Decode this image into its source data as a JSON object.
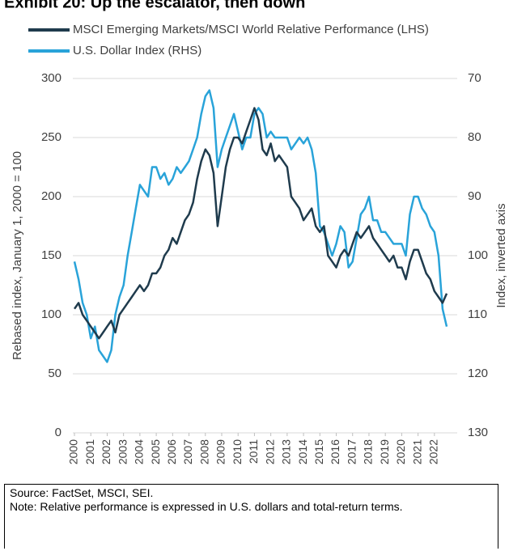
{
  "chart_data": {
    "type": "line",
    "title": "Exhibit 20: Up the escalator, then down",
    "ylabel": "Rebased index, January 1, 2000 = 100",
    "y2label": "Index, inverted axis",
    "xlim": [
      2000,
      2022.75
    ],
    "xticks": [
      2000,
      2001,
      2002,
      2003,
      2004,
      2005,
      2006,
      2007,
      2008,
      2009,
      2010,
      2011,
      2012,
      2013,
      2014,
      2015,
      2016,
      2017,
      2018,
      2019,
      2020,
      2021,
      2022
    ],
    "ylim": [
      0,
      300
    ],
    "yticks": [
      0,
      50,
      100,
      150,
      200,
      250,
      300
    ],
    "y2lim": [
      130,
      70
    ],
    "y2ticks": [
      70,
      80,
      90,
      100,
      110,
      120,
      130
    ],
    "grid": true,
    "x": [
      2000,
      2000.25,
      2000.5,
      2000.75,
      2001,
      2001.25,
      2001.5,
      2001.75,
      2002,
      2002.25,
      2002.5,
      2002.75,
      2003,
      2003.25,
      2003.5,
      2003.75,
      2004,
      2004.25,
      2004.5,
      2004.75,
      2005,
      2005.25,
      2005.5,
      2005.75,
      2006,
      2006.25,
      2006.5,
      2006.75,
      2007,
      2007.25,
      2007.5,
      2007.75,
      2008,
      2008.25,
      2008.5,
      2008.75,
      2009,
      2009.25,
      2009.5,
      2009.75,
      2010,
      2010.25,
      2010.5,
      2010.75,
      2011,
      2011.25,
      2011.5,
      2011.75,
      2012,
      2012.25,
      2012.5,
      2012.75,
      2013,
      2013.25,
      2013.5,
      2013.75,
      2014,
      2014.25,
      2014.5,
      2014.75,
      2015,
      2015.25,
      2015.5,
      2015.75,
      2016,
      2016.25,
      2016.5,
      2016.75,
      2017,
      2017.25,
      2017.5,
      2017.75,
      2018,
      2018.25,
      2018.5,
      2018.75,
      2019,
      2019.25,
      2019.5,
      2019.75,
      2020,
      2020.25,
      2020.5,
      2020.75,
      2021,
      2021.25,
      2021.5,
      2021.75,
      2022,
      2022.25,
      2022.5,
      2022.75
    ],
    "series": [
      {
        "name": "MSCI Emerging Markets/MSCI World Relative Performance (LHS)",
        "color": "#1f3b4d",
        "axis": "y",
        "values": [
          105,
          110,
          100,
          95,
          90,
          85,
          80,
          85,
          90,
          95,
          85,
          100,
          105,
          110,
          115,
          120,
          125,
          120,
          125,
          135,
          135,
          140,
          150,
          155,
          165,
          160,
          170,
          180,
          185,
          195,
          215,
          230,
          240,
          235,
          220,
          175,
          200,
          225,
          240,
          250,
          250,
          245,
          255,
          265,
          275,
          265,
          240,
          235,
          245,
          230,
          235,
          230,
          225,
          200,
          195,
          190,
          180,
          185,
          190,
          175,
          170,
          175,
          150,
          145,
          140,
          150,
          155,
          150,
          160,
          170,
          165,
          170,
          175,
          165,
          160,
          155,
          150,
          145,
          150,
          140,
          140,
          130,
          145,
          155,
          155,
          145,
          135,
          130,
          120,
          115,
          110,
          118
        ]
      },
      {
        "name": "U.S. Dollar Index (RHS)",
        "color": "#29a3d9",
        "axis": "y2",
        "values": [
          101,
          104,
          108,
          110,
          114,
          112,
          116,
          117,
          118,
          116,
          110,
          107,
          105,
          100,
          96,
          92,
          88,
          89,
          90,
          85,
          85,
          87,
          86,
          88,
          87,
          85,
          86,
          85,
          84,
          82,
          80,
          76,
          73,
          72,
          75,
          85,
          82,
          80,
          78,
          76,
          79,
          82,
          80,
          80,
          76,
          75,
          76,
          80,
          79,
          80,
          80,
          80,
          80,
          82,
          81,
          80,
          81,
          80,
          82,
          86,
          95,
          96,
          98,
          100,
          98,
          95,
          96,
          102,
          101,
          97,
          93,
          92,
          90,
          94,
          94,
          96,
          96,
          97,
          98,
          98,
          98,
          100,
          93,
          90,
          90,
          92,
          93,
          95,
          96,
          100,
          109,
          112
        ]
      }
    ]
  },
  "source": "Source: FactSet, MSCI, SEI.",
  "note": "Note: Relative performance is expressed in U.S. dollars and total-return terms."
}
